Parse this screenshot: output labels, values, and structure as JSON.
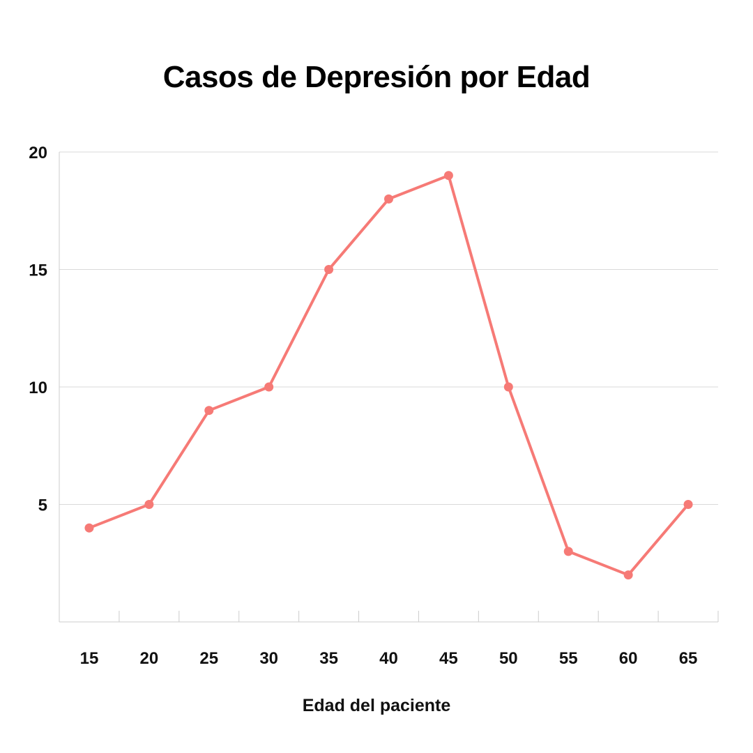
{
  "chart_data": {
    "type": "line",
    "title": "Casos de Depresión por Edad",
    "xlabel": "Edad del paciente",
    "ylabel": "",
    "categories": [
      "15",
      "20",
      "25",
      "30",
      "35",
      "40",
      "45",
      "50",
      "55",
      "60",
      "65"
    ],
    "series": [
      {
        "values": [
          4,
          5,
          9,
          10,
          15,
          18,
          19,
          10,
          3,
          2,
          5
        ]
      }
    ],
    "ylim": [
      0,
      20
    ],
    "yticks": [
      5,
      10,
      15,
      20
    ],
    "grid": true,
    "colors": {
      "line": "#f67a76",
      "grid": "#d9d9d9",
      "axis": "#cccccc"
    }
  }
}
